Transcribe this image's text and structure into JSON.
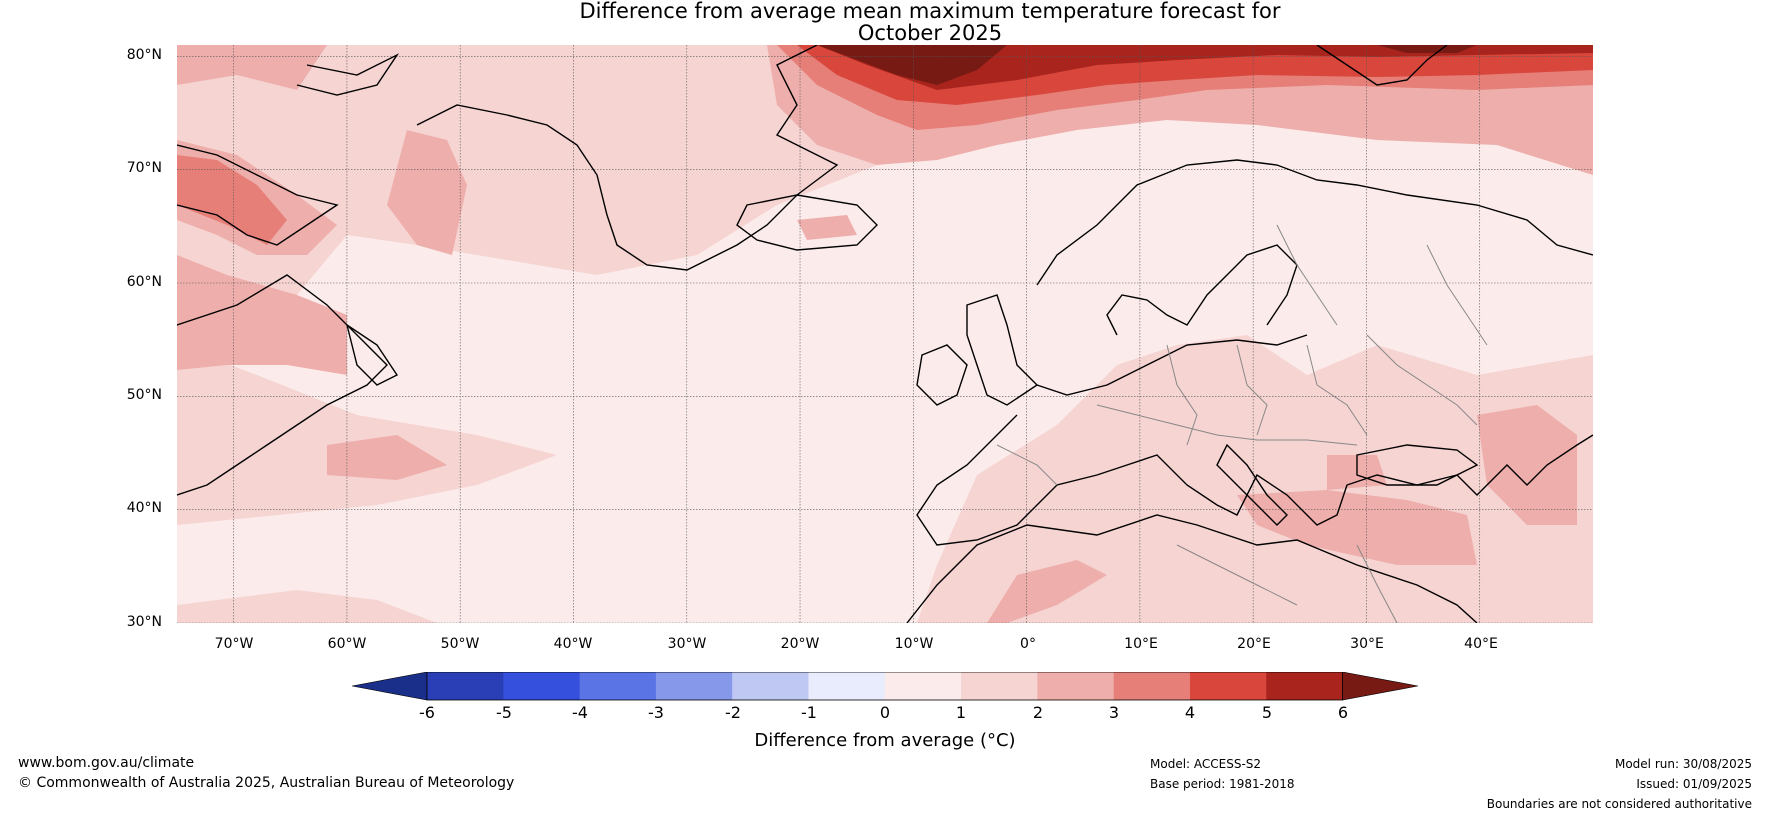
{
  "title": {
    "line1": "Difference from average mean maximum temperature forecast for",
    "line2": "October 2025"
  },
  "map": {
    "region": "North Atlantic and Europe",
    "lon_range": [
      -75,
      50
    ],
    "lat_range": [
      30,
      81
    ],
    "lat_labels": [
      "30°N",
      "40°N",
      "50°N",
      "60°N",
      "70°N",
      "80°N"
    ],
    "lat_values": [
      30,
      40,
      50,
      60,
      70,
      80
    ],
    "lon_labels": [
      "70°W",
      "60°W",
      "50°W",
      "40°W",
      "30°W",
      "20°W",
      "10°W",
      "0°",
      "10°E",
      "20°E",
      "30°E",
      "40°E"
    ],
    "lon_values": [
      -70,
      -60,
      -50,
      -40,
      -30,
      -20,
      -10,
      0,
      10,
      20,
      30,
      40
    ],
    "gridlines": true
  },
  "colorbar": {
    "ticks": [
      "-6",
      "-5",
      "-4",
      "-3",
      "-2",
      "-1",
      "0",
      "1",
      "2",
      "3",
      "4",
      "5",
      "6"
    ],
    "colors": [
      "#1a2f8a",
      "#2a3fb5",
      "#3450dd",
      "#5a74e6",
      "#8598ea",
      "#bfc8f3",
      "#e8ecfc",
      "#fbeceb",
      "#f5d4d2",
      "#eeaeab",
      "#e57f78",
      "#d8463c",
      "#a8241c",
      "#781a14"
    ],
    "label": "Difference from average (°C)",
    "extend": "both"
  },
  "footer": {
    "website": "www.bom.gov.au/climate",
    "copyright": "© Commonwealth of Australia 2025, Australian Bureau of Meteorology",
    "model": "Model: ACCESS-S2",
    "base_period": "Base period: 1981-2018",
    "model_run": "Model run: 30/08/2025",
    "issued": "Issued: 01/09/2025",
    "disclaimer": "Boundaries are not considered authoritative"
  }
}
